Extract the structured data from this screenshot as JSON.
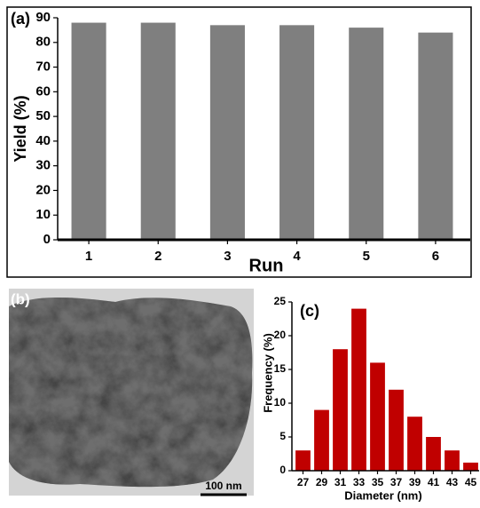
{
  "chart_data": [
    {
      "type": "bar",
      "panel_label": "(a)",
      "y_label": "Yield (%)",
      "x_label": "Run",
      "categories": [
        "1",
        "2",
        "3",
        "4",
        "5",
        "6"
      ],
      "values": [
        88,
        88,
        87,
        87,
        86,
        84
      ],
      "color": "#7f7f7f",
      "ylim": [
        0,
        90
      ],
      "yticks": [
        0,
        10,
        20,
        30,
        40,
        50,
        60,
        70,
        80,
        90
      ],
      "grid": false
    },
    {
      "type": "bar",
      "panel_label": "(c)",
      "y_label": "Frequency (%)",
      "x_label": "Diameter (nm)",
      "categories": [
        "27",
        "29",
        "31",
        "33",
        "35",
        "37",
        "39",
        "41",
        "43",
        "45"
      ],
      "values": [
        3,
        9,
        18,
        24,
        16,
        12,
        8,
        5,
        3,
        1.2
      ],
      "color": "#c00000",
      "ylim": [
        0,
        25
      ],
      "yticks": [
        0,
        5,
        10,
        15,
        20,
        25
      ],
      "grid": false
    }
  ],
  "image_panel": {
    "label": "(b)",
    "scale_bar": "100 nm"
  }
}
